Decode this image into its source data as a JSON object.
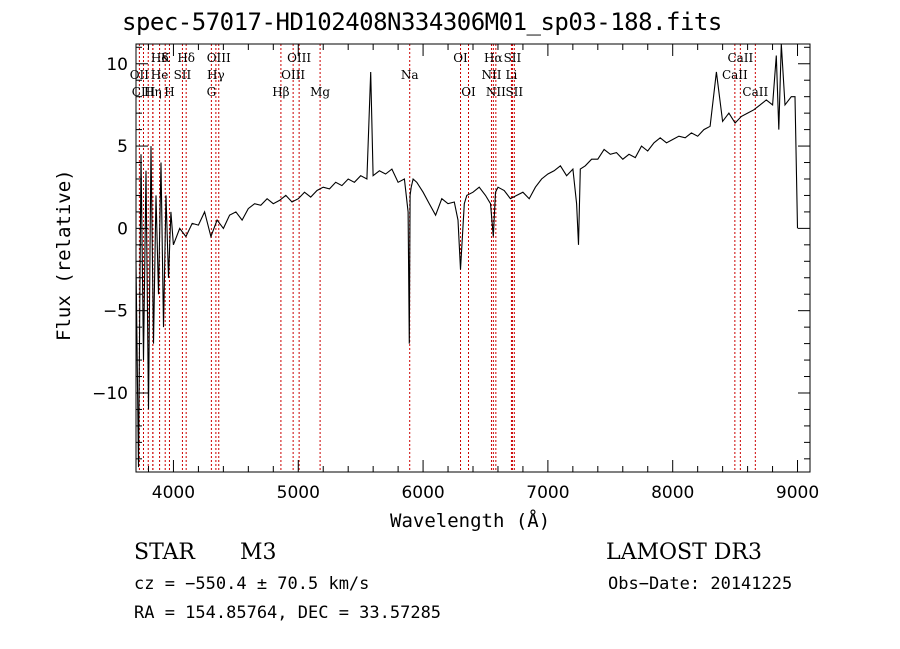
{
  "chart_data": {
    "type": "line",
    "title": "spec-57017-HD102408N334306M01_sp03-188.fits",
    "xlabel": "Wavelength (Å)",
    "ylabel": "Flux (relative)",
    "xlim": [
      3700,
      9100
    ],
    "ylim": [
      -14.8,
      11.2
    ],
    "x_ticks": [
      4000,
      5000,
      6000,
      7000,
      8000,
      9000
    ],
    "y_ticks": [
      -10,
      -5,
      0,
      5,
      10
    ],
    "tick_labels_x": [
      "4000",
      "5000",
      "6000",
      "7000",
      "8000",
      "9000"
    ],
    "tick_labels_y": [
      "−10",
      "−5",
      "0",
      "5",
      "10"
    ],
    "line_color": "#000000",
    "marker_color": "#cc0000",
    "grid": false,
    "series": [
      {
        "x": [
          3700,
          3720,
          3740,
          3760,
          3780,
          3800,
          3820,
          3840,
          3860,
          3880,
          3900,
          3920,
          3940,
          3960,
          3980,
          4000,
          4050,
          4100,
          4150,
          4200,
          4250,
          4300,
          4350,
          4400,
          4450,
          4500,
          4550,
          4600,
          4650,
          4700,
          4750,
          4800,
          4850,
          4900,
          4950,
          5000,
          5050,
          5100,
          5150,
          5200,
          5250,
          5300,
          5350,
          5400,
          5450,
          5500,
          5550,
          5580,
          5600,
          5650,
          5700,
          5750,
          5800,
          5850,
          5880,
          5890,
          5896,
          5905,
          5920,
          5950,
          6000,
          6050,
          6100,
          6150,
          6200,
          6250,
          6280,
          6300,
          6330,
          6350,
          6400,
          6450,
          6500,
          6540,
          6563,
          6580,
          6600,
          6650,
          6700,
          6750,
          6800,
          6850,
          6900,
          6950,
          7000,
          7050,
          7100,
          7150,
          7200,
          7230,
          7245,
          7260,
          7300,
          7350,
          7400,
          7450,
          7500,
          7550,
          7600,
          7650,
          7700,
          7750,
          7800,
          7850,
          7900,
          7950,
          8000,
          8050,
          8100,
          8150,
          8200,
          8250,
          8300,
          8350,
          8400,
          8450,
          8500,
          8550,
          8600,
          8650,
          8700,
          8750,
          8800,
          8830,
          8850,
          8870,
          8900,
          8950,
          8980,
          9000
        ],
        "y": [
          -2,
          -14.5,
          4.5,
          -8,
          3.5,
          -11,
          5,
          -7,
          2,
          -4,
          4,
          -6,
          2,
          -3,
          1,
          -1,
          0,
          -0.5,
          0.3,
          0.2,
          1,
          -0.5,
          0.5,
          0,
          0.8,
          1,
          0.5,
          1.2,
          1.5,
          1.4,
          1.8,
          1.5,
          1.7,
          2,
          1.6,
          1.8,
          2.2,
          1.9,
          2.3,
          2.5,
          2.4,
          2.8,
          2.6,
          3,
          2.8,
          3.2,
          3,
          9.5,
          3.2,
          3.5,
          3.3,
          3.6,
          2.8,
          3,
          1,
          -7,
          2,
          2.5,
          3,
          2.8,
          2.2,
          1.5,
          0.8,
          1.8,
          1.5,
          1.6,
          0.5,
          -2.5,
          1.5,
          2,
          2.2,
          2.5,
          2,
          1.5,
          -0.5,
          2.2,
          2.5,
          2.3,
          1.8,
          2,
          2.2,
          1.8,
          2.5,
          3,
          3.3,
          3.5,
          3.8,
          3.2,
          3.6,
          1.5,
          -1,
          3.6,
          3.8,
          4.2,
          4.2,
          4.8,
          4.5,
          4.6,
          4.2,
          4.5,
          4.3,
          5,
          4.7,
          5.2,
          5.5,
          5.2,
          5.4,
          5.6,
          5.5,
          5.8,
          5.6,
          6,
          6.2,
          9.5,
          6.5,
          7,
          6.4,
          6.8,
          7,
          7.2,
          7.5,
          7.8,
          7.5,
          10.5,
          6,
          11.2,
          7.5,
          8,
          8,
          0
        ]
      }
    ],
    "line_markers": [
      {
        "label": "Hδ",
        "row": 0,
        "x": 3890,
        "lines": [
          3798,
          3835
        ]
      },
      {
        "label": "K",
        "row": 0,
        "x": 3934,
        "lines": [
          3934
        ]
      },
      {
        "label": "Hδ",
        "row": 0,
        "x": 4102,
        "lines": [
          4102
        ]
      },
      {
        "label": "OIII",
        "row": 0,
        "x": 4363,
        "lines": [
          4363
        ]
      },
      {
        "label": "OIII",
        "row": 0,
        "x": 5007,
        "lines": [
          5007
        ]
      },
      {
        "label": "OI",
        "row": 0,
        "x": 6300,
        "lines": [
          6300
        ]
      },
      {
        "label": "Hα",
        "row": 0,
        "x": 6563,
        "lines": [
          6563
        ]
      },
      {
        "label": "SII",
        "row": 0,
        "x": 6716,
        "lines": [
          6716
        ]
      },
      {
        "label": "CaII",
        "row": 0,
        "x": 8542,
        "lines": [
          8542
        ]
      },
      {
        "label": "OII",
        "row": 1,
        "x": 3727,
        "lines": [
          3727
        ]
      },
      {
        "label": "He",
        "row": 1,
        "x": 3889,
        "lines": [
          3889
        ]
      },
      {
        "label": "SII",
        "row": 1,
        "x": 4072,
        "lines": [
          4072
        ]
      },
      {
        "label": "Hγ",
        "row": 1,
        "x": 4340,
        "lines": [
          4340
        ]
      },
      {
        "label": "OIII",
        "row": 1,
        "x": 4959,
        "lines": [
          4959
        ]
      },
      {
        "label": "Na",
        "row": 1,
        "x": 5893,
        "lines": [
          5893
        ]
      },
      {
        "label": "NII",
        "row": 1,
        "x": 6548,
        "lines": [
          6548
        ]
      },
      {
        "label": "Li",
        "row": 1,
        "x": 6708,
        "lines": [
          6708
        ]
      },
      {
        "label": "CaII",
        "row": 1,
        "x": 8498,
        "lines": [
          8498
        ]
      },
      {
        "label": "CIII",
        "row": 2,
        "x": 3760,
        "lines": [
          3760
        ]
      },
      {
        "label": "Hη",
        "row": 2,
        "x": 3835,
        "lines": [
          3835
        ]
      },
      {
        "label": "H",
        "row": 2,
        "x": 3968,
        "lines": [
          3968
        ]
      },
      {
        "label": "G",
        "row": 2,
        "x": 4304,
        "lines": [
          4304
        ]
      },
      {
        "label": "Hβ",
        "row": 2,
        "x": 4861,
        "lines": [
          4861
        ]
      },
      {
        "label": "Mg",
        "row": 2,
        "x": 5175,
        "lines": [
          5175
        ]
      },
      {
        "label": "OI",
        "row": 2,
        "x": 6364,
        "lines": [
          6364
        ]
      },
      {
        "label": "NII",
        "row": 2,
        "x": 6583,
        "lines": [
          6583
        ]
      },
      {
        "label": "SII",
        "row": 2,
        "x": 6731,
        "lines": [
          6731
        ]
      },
      {
        "label": "CaII",
        "row": 2,
        "x": 8662,
        "lines": [
          8662
        ]
      }
    ]
  },
  "footer": {
    "object_type": "STAR",
    "subclass": "M3",
    "survey": "LAMOST DR3",
    "redshift": "cz = −550.4 ± 70.5 km/s",
    "obs_date": "Obs−Date: 20141225",
    "coords": "RA = 154.85764, DEC =  33.57285"
  }
}
